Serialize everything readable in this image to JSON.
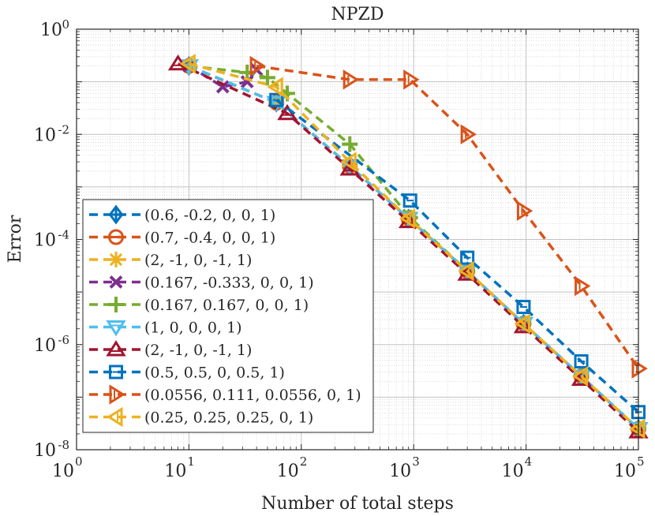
{
  "chart_data": {
    "type": "line",
    "title": "NPZD",
    "xlabel": "Number of total steps",
    "ylabel": "Error",
    "xscale": "log",
    "yscale": "log",
    "xlim": [
      1,
      100000
    ],
    "ylim": [
      1e-08,
      1
    ],
    "grid": true,
    "legend_position": "left",
    "x_ticks": [
      {
        "base": "10",
        "exp": "0"
      },
      {
        "base": "10",
        "exp": "1"
      },
      {
        "base": "10",
        "exp": "2"
      },
      {
        "base": "10",
        "exp": "3"
      },
      {
        "base": "10",
        "exp": "4"
      },
      {
        "base": "10",
        "exp": "5"
      }
    ],
    "y_ticks": [
      {
        "base": "10",
        "exp": "0"
      },
      {
        "base": "10",
        "exp": "-2"
      },
      {
        "base": "10",
        "exp": "-4"
      },
      {
        "base": "10",
        "exp": "-6"
      },
      {
        "base": "10",
        "exp": "-8"
      }
    ],
    "series": [
      {
        "name": "(0.6, -0.2, 0, 0, 1)",
        "color": "#0072BD",
        "marker": "diamond-plus",
        "x": [
          10,
          60,
          270,
          900,
          3000,
          9500,
          31000,
          100000
        ],
        "y": [
          0.2,
          0.04,
          0.0025,
          0.00025,
          2.5e-05,
          2.5e-06,
          2.5e-07,
          2.5e-08
        ]
      },
      {
        "name": "(0.7, -0.4, 0, 0, 1)",
        "color": "#D95319",
        "marker": "circle-minus",
        "x": [
          10,
          60,
          270,
          900,
          3000,
          9500,
          31000,
          100000
        ],
        "y": [
          0.2,
          0.04,
          0.0025,
          0.00025,
          2.5e-05,
          2.5e-06,
          2.5e-07,
          2.5e-08
        ]
      },
      {
        "name": "(2, -1, 0, -1, 1)",
        "color": "#EDB120",
        "marker": "asterisk",
        "x": [
          10,
          60,
          270,
          900,
          3000,
          9500,
          31000,
          100000
        ],
        "y": [
          0.2,
          0.04,
          0.0025,
          0.00025,
          2.5e-05,
          2.5e-06,
          2.5e-07,
          2.5e-08
        ]
      },
      {
        "name": "(0.167, -0.333, 0, 0, 1)",
        "color": "#7E2F8E",
        "marker": "x",
        "x": [
          10,
          20,
          33,
          40
        ],
        "y": [
          0.2,
          0.08,
          0.1,
          0.17
        ]
      },
      {
        "name": "(0.167, 0.167, 0, 0, 1)",
        "color": "#77AC30",
        "marker": "plus",
        "x": [
          10,
          33,
          50,
          75,
          270,
          930,
          3000,
          9500,
          31000,
          100000
        ],
        "y": [
          0.2,
          0.15,
          0.12,
          0.06,
          0.0065,
          0.00026,
          2.5e-05,
          2.5e-06,
          2.5e-07,
          2.5e-08
        ]
      },
      {
        "name": "(1, 0, 0, 0, 1)",
        "color": "#4DBEEE",
        "marker": "triangle-down",
        "x": [
          10,
          60,
          270,
          900,
          3000,
          9500,
          31000,
          100000
        ],
        "y": [
          0.2,
          0.04,
          0.0025,
          0.00025,
          2.5e-05,
          2.5e-06,
          2.5e-07,
          2.5e-08
        ]
      },
      {
        "name": "(2, -1, 0, -1, 1)",
        "color": "#A2142F",
        "marker": "triangle-up",
        "x": [
          8,
          75,
          270,
          900,
          3000,
          9500,
          31000,
          100000
        ],
        "y": [
          0.22,
          0.025,
          0.0022,
          0.00022,
          2.2e-05,
          2.2e-06,
          2.2e-07,
          2.2e-08
        ]
      },
      {
        "name": "(0.5, 0.5, 0, 0.5, 1)",
        "color": "#0072BD",
        "marker": "square-minus",
        "x": [
          60,
          930,
          3000,
          9500,
          31000,
          100000
        ],
        "y": [
          0.045,
          0.00055,
          4.5e-05,
          5.2e-06,
          4.8e-07,
          5.2e-08
        ]
      },
      {
        "name": "(0.0556, 0.111, 0.0556, 0, 1)",
        "color": "#D95319",
        "marker": "triangle-right",
        "x": [
          40,
          270,
          930,
          3000,
          9500,
          31000,
          100000
        ],
        "y": [
          0.2,
          0.11,
          0.11,
          0.01,
          0.00035,
          1.3e-05,
          3.5e-07
        ]
      },
      {
        "name": "(0.25, 0.25, 0.25, 0, 1)",
        "color": "#EDB120",
        "marker": "triangle-left",
        "x": [
          10,
          60,
          270,
          900,
          3000,
          9500,
          31000,
          100000
        ],
        "y": [
          0.22,
          0.08,
          0.003,
          0.00025,
          2.5e-05,
          2.5e-06,
          2.5e-07,
          2.5e-08
        ]
      }
    ]
  }
}
